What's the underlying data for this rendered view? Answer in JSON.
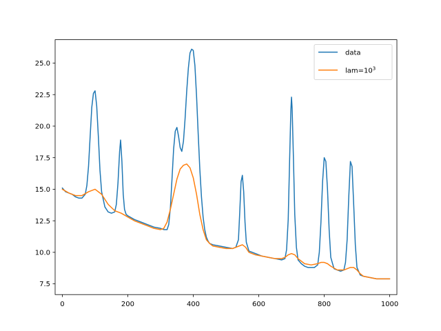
{
  "chart_data": {
    "type": "line",
    "title": "",
    "xlabel": "",
    "ylabel": "",
    "xlim": [
      -22,
      1022
    ],
    "ylim": [
      6.65,
      26.85
    ],
    "xticks": [
      0,
      200,
      400,
      600,
      800,
      1000
    ],
    "yticks": [
      7.5,
      10.0,
      12.5,
      15.0,
      17.5,
      20.0,
      22.5,
      25.0
    ],
    "xtick_labels": [
      "0",
      "200",
      "400",
      "600",
      "800",
      "1000"
    ],
    "ytick_labels": [
      "7.5",
      "10.0",
      "12.5",
      "15.0",
      "17.5",
      "20.0",
      "22.5",
      "25.0"
    ],
    "grid": false,
    "legend_position": "top-right",
    "series": [
      {
        "name": "data",
        "color": "#1f77b4",
        "x": [
          0,
          10,
          20,
          30,
          40,
          50,
          60,
          70,
          75,
          80,
          85,
          90,
          95,
          100,
          105,
          110,
          115,
          120,
          130,
          140,
          150,
          160,
          165,
          170,
          175,
          178,
          182,
          186,
          190,
          195,
          200,
          220,
          240,
          260,
          280,
          300,
          310,
          320,
          325,
          330,
          335,
          340,
          345,
          350,
          355,
          360,
          365,
          370,
          375,
          380,
          385,
          390,
          395,
          400,
          405,
          410,
          415,
          420,
          425,
          430,
          435,
          440,
          445,
          450,
          460,
          480,
          500,
          520,
          530,
          538,
          542,
          546,
          550,
          554,
          558,
          562,
          570,
          590,
          610,
          630,
          650,
          670,
          680,
          685,
          690,
          694,
          698,
          700,
          702,
          706,
          710,
          715,
          720,
          730,
          740,
          750,
          760,
          770,
          780,
          785,
          790,
          795,
          800,
          805,
          810,
          815,
          820,
          830,
          840,
          850,
          860,
          865,
          870,
          875,
          880,
          885,
          890,
          895,
          900,
          910,
          920,
          940,
          960,
          980,
          1000
        ],
        "y": [
          15.1,
          14.8,
          14.7,
          14.6,
          14.4,
          14.3,
          14.3,
          14.6,
          15.3,
          16.8,
          19.2,
          21.5,
          22.6,
          22.8,
          21.6,
          19.2,
          16.5,
          14.8,
          13.6,
          13.2,
          13.1,
          13.2,
          13.8,
          15.5,
          18.0,
          18.9,
          17.2,
          14.6,
          13.4,
          13.0,
          12.9,
          12.6,
          12.4,
          12.2,
          12.0,
          11.9,
          11.8,
          11.8,
          12.2,
          13.5,
          15.8,
          18.2,
          19.6,
          19.9,
          19.2,
          18.3,
          18.0,
          18.8,
          20.6,
          22.8,
          24.6,
          25.8,
          26.1,
          26.0,
          24.8,
          22.4,
          19.4,
          16.6,
          14.4,
          12.8,
          11.8,
          11.2,
          10.9,
          10.7,
          10.6,
          10.5,
          10.4,
          10.3,
          10.4,
          11.0,
          13.2,
          15.6,
          16.1,
          14.8,
          12.4,
          10.8,
          10.1,
          9.9,
          9.7,
          9.6,
          9.5,
          9.4,
          9.5,
          10.2,
          12.6,
          17.0,
          21.2,
          22.3,
          21.4,
          17.4,
          13.0,
          10.4,
          9.4,
          9.1,
          8.9,
          8.8,
          8.8,
          8.8,
          9.0,
          10.0,
          12.4,
          15.6,
          17.5,
          17.2,
          15.0,
          11.8,
          9.6,
          8.7,
          8.6,
          8.5,
          8.6,
          9.2,
          11.0,
          14.4,
          17.2,
          16.8,
          13.8,
          10.6,
          8.8,
          8.2,
          8.1,
          8.0,
          7.9,
          7.9,
          7.9
        ]
      },
      {
        "name": "lam=10",
        "name_superscript": "3",
        "color": "#ff7f0e",
        "x": [
          0,
          20,
          40,
          60,
          80,
          100,
          120,
          140,
          160,
          180,
          200,
          220,
          240,
          260,
          280,
          300,
          310,
          320,
          330,
          340,
          350,
          360,
          370,
          380,
          390,
          400,
          410,
          420,
          430,
          440,
          450,
          460,
          480,
          500,
          520,
          540,
          550,
          560,
          570,
          590,
          610,
          630,
          650,
          670,
          680,
          690,
          700,
          710,
          720,
          740,
          760,
          780,
          790,
          800,
          810,
          820,
          840,
          860,
          880,
          890,
          900,
          910,
          920,
          940,
          960,
          980,
          1000
        ],
        "y": [
          15.0,
          14.7,
          14.5,
          14.5,
          14.8,
          15.0,
          14.6,
          13.8,
          13.3,
          13.1,
          12.8,
          12.5,
          12.3,
          12.1,
          11.9,
          11.8,
          11.9,
          12.4,
          13.4,
          14.6,
          15.8,
          16.6,
          16.9,
          17.0,
          16.7,
          15.9,
          14.6,
          13.0,
          11.8,
          11.0,
          10.7,
          10.5,
          10.4,
          10.3,
          10.3,
          10.5,
          10.6,
          10.4,
          10.0,
          9.8,
          9.7,
          9.6,
          9.5,
          9.5,
          9.6,
          9.8,
          9.9,
          9.8,
          9.5,
          9.1,
          9.0,
          9.1,
          9.2,
          9.2,
          9.1,
          8.9,
          8.6,
          8.6,
          8.8,
          8.8,
          8.6,
          8.3,
          8.1,
          8.0,
          7.9,
          7.9,
          7.9
        ]
      }
    ]
  }
}
